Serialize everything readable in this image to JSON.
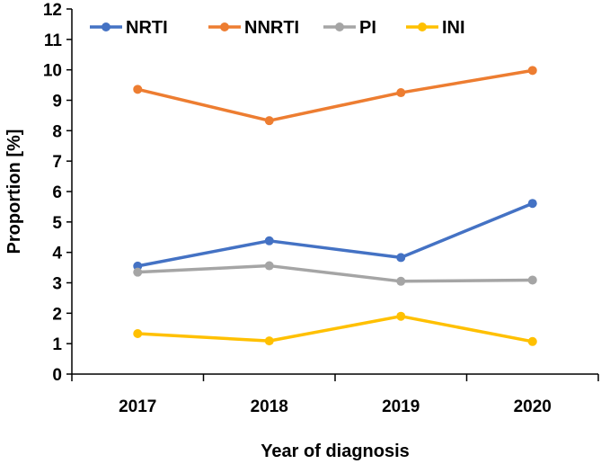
{
  "chart_data": {
    "type": "line",
    "title": "",
    "xlabel": "Year of diagnosis",
    "ylabel": "Proportion [%]",
    "categories": [
      "2017",
      "2018",
      "2019",
      "2020"
    ],
    "ylim": [
      0,
      12
    ],
    "yticks": [
      "0",
      "1",
      "2",
      "3",
      "4",
      "5",
      "6",
      "7",
      "8",
      "9",
      "10",
      "11",
      "12"
    ],
    "grid": false,
    "legend_position": "top",
    "series": [
      {
        "name": "NRTI",
        "color": "#4472C4",
        "values": [
          3.55,
          4.38,
          3.83,
          5.61
        ]
      },
      {
        "name": "NNRTI",
        "color": "#ED7D31",
        "values": [
          9.36,
          8.33,
          9.25,
          9.98
        ]
      },
      {
        "name": "PI",
        "color": "#A5A5A5",
        "values": [
          3.35,
          3.56,
          3.05,
          3.09
        ]
      },
      {
        "name": "INI",
        "color": "#FFC000",
        "values": [
          1.33,
          1.09,
          1.9,
          1.07
        ]
      }
    ]
  }
}
